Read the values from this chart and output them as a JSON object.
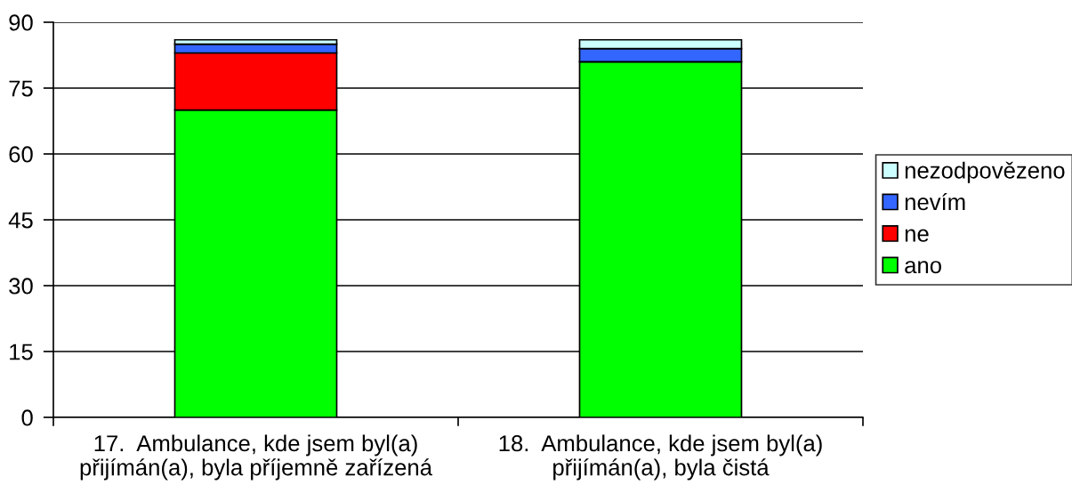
{
  "chart_data": {
    "type": "bar",
    "stacked": true,
    "categories": [
      "17.  Ambulance, kde jsem byl(a)\npřijímán(a), byla příjemně zařízená",
      "18.  Ambulance, kde jsem byl(a)\npřijímán(a), byla čistá"
    ],
    "series": [
      {
        "name": "ano",
        "color": "#00ff00",
        "values": [
          70,
          81
        ]
      },
      {
        "name": "ne",
        "color": "#ff0000",
        "values": [
          13,
          0
        ]
      },
      {
        "name": "nevím",
        "color": "#3366ff",
        "values": [
          2,
          3
        ]
      },
      {
        "name": "nezodpovězeno",
        "color": "#ccffff",
        "values": [
          1,
          2
        ]
      }
    ],
    "ylim": [
      0,
      90
    ],
    "yticks": [
      0,
      15,
      30,
      45,
      60,
      75,
      90
    ],
    "grid": "y",
    "legend": "right"
  }
}
